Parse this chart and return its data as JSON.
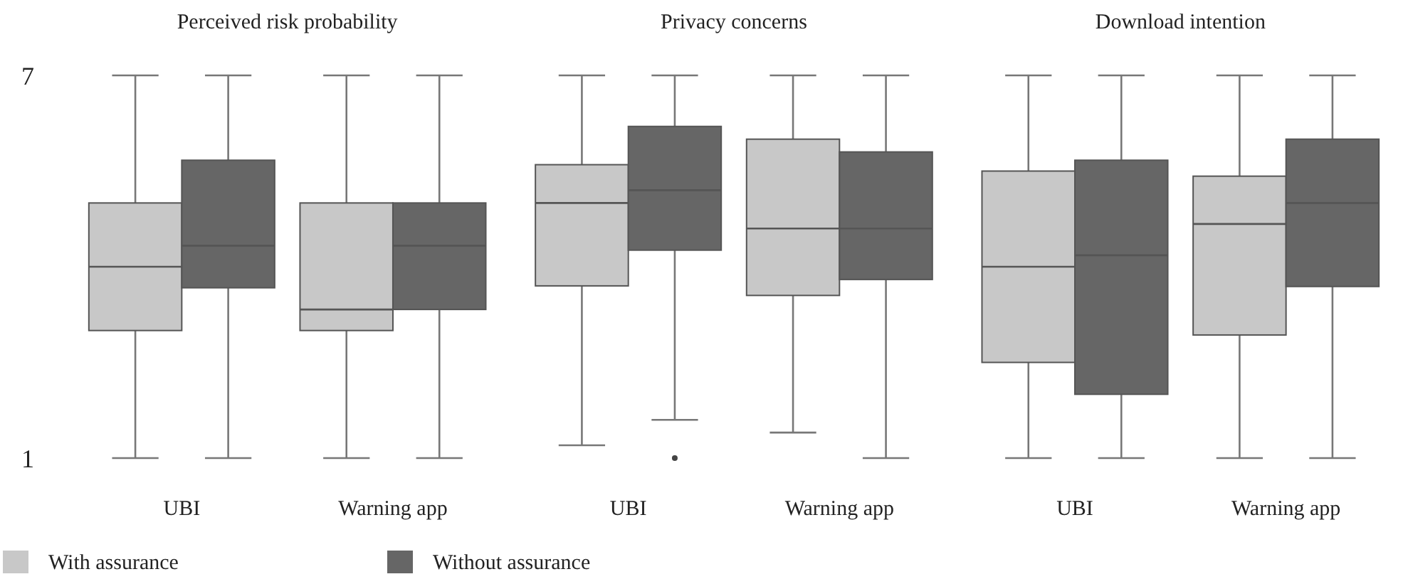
{
  "chart_data": [
    {
      "type": "box",
      "title": "Perceived risk probability",
      "categories": [
        "UBI",
        "Warning app"
      ],
      "ylim": [
        1,
        7
      ],
      "yticks": [
        1,
        7
      ],
      "grid": false,
      "legend": "bottom left",
      "series": [
        {
          "name": "With assurance",
          "color": "#c8c8c8",
          "boxes": [
            {
              "low": 1,
              "q1": 3.0,
              "median": 4.0,
              "q3": 5.0,
              "high": 7
            },
            {
              "low": 1,
              "q1": 3.0,
              "median": 3.33,
              "q3": 5.0,
              "high": 7
            }
          ]
        },
        {
          "name": "Without assurance",
          "color": "#666666",
          "boxes": [
            {
              "low": 1,
              "q1": 3.67,
              "median": 4.33,
              "q3": 5.67,
              "high": 7
            },
            {
              "low": 1,
              "q1": 3.33,
              "median": 4.33,
              "q3": 5.0,
              "high": 7
            }
          ]
        }
      ]
    },
    {
      "type": "box",
      "title": "Privacy concerns",
      "categories": [
        "UBI",
        "Warning app"
      ],
      "ylim": [
        1,
        7
      ],
      "tick_labels": "x",
      "grid": false,
      "series": [
        {
          "color": "#c8c8c8",
          "boxes": [
            {
              "low": 1.2,
              "q1": 3.7,
              "median": 5.0,
              "q3": 5.6,
              "high": 7
            },
            {
              "low": 1.4,
              "q1": 3.55,
              "median": 4.6,
              "q3": 6.0,
              "high": 7
            }
          ]
        },
        {
          "color": "#666666",
          "boxes": [
            {
              "low": 1.6,
              "q1": 4.26,
              "median": 5.2,
              "q3": 6.2,
              "high": 7,
              "outliers": [
                1.0
              ]
            },
            {
              "low": 1,
              "q1": 3.8,
              "median": 4.6,
              "q3": 5.8,
              "high": 7
            }
          ]
        }
      ]
    },
    {
      "type": "box",
      "title": "Download intention",
      "categories": [
        "UBI",
        "Warning app"
      ],
      "ylim": [
        1,
        7
      ],
      "tick_labels": "x",
      "grid": false,
      "series": [
        {
          "color": "#c8c8c8",
          "boxes": [
            {
              "low": 1,
              "q1": 2.5,
              "median": 4.0,
              "q3": 5.5,
              "high": 7
            },
            {
              "low": 1,
              "q1": 2.93,
              "median": 4.67,
              "q3": 5.42,
              "high": 7
            }
          ]
        },
        {
          "color": "#666666",
          "boxes": [
            {
              "low": 1,
              "q1": 2.0,
              "median": 4.18,
              "q3": 5.67,
              "high": 7
            },
            {
              "low": 1,
              "q1": 3.69,
              "median": 5.0,
              "q3": 6.0,
              "high": 7
            }
          ]
        }
      ]
    }
  ]
}
